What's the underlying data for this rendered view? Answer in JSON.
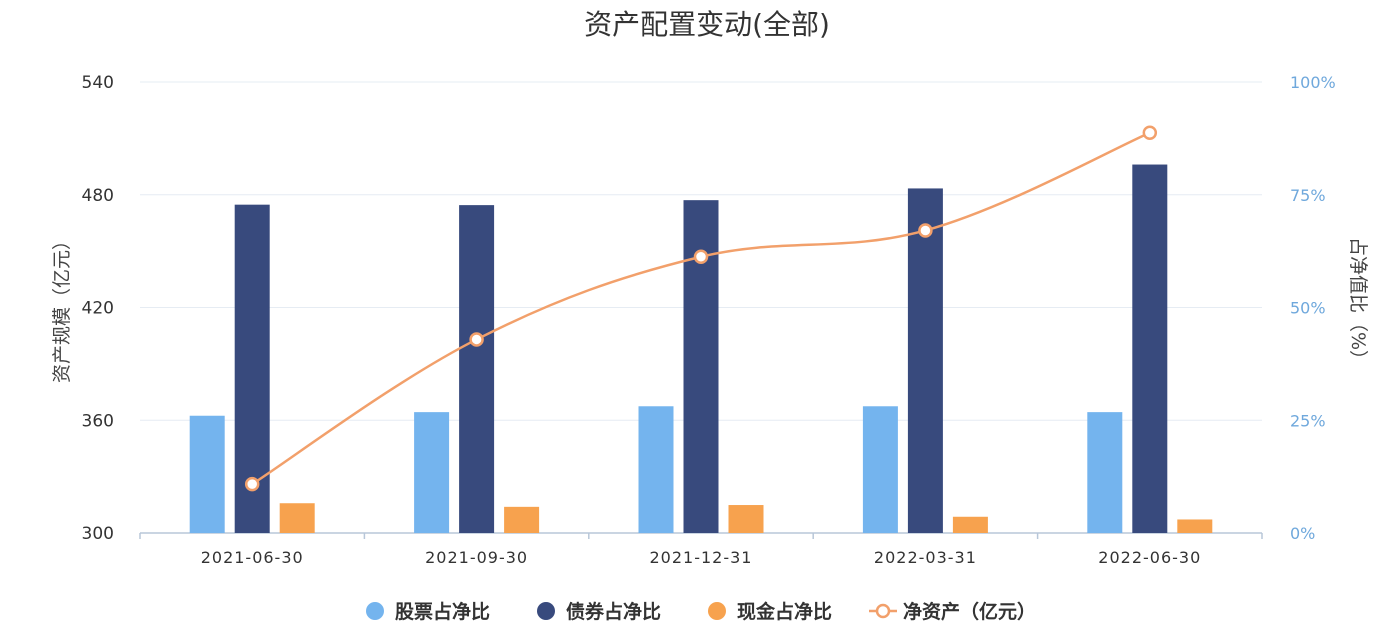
{
  "chart_data": {
    "type": "bar",
    "title": "资产配置变动(全部)",
    "categories": [
      "2021-06-30",
      "2021-09-30",
      "2021-12-31",
      "2022-03-31",
      "2022-06-30"
    ],
    "ylabel_left": "资产规模（亿元）",
    "ylabel_right": "占净值比（%）",
    "left_axis": {
      "min": 300,
      "max": 540,
      "ticks": [
        "300",
        "360",
        "420",
        "480",
        "540"
      ]
    },
    "right_axis": {
      "min": 0,
      "max": 100,
      "ticks": [
        "0%",
        "25%",
        "50%",
        "75%",
        "100%"
      ]
    },
    "grid": true,
    "legend_position": "bottom",
    "series": [
      {
        "name": "股票占净比",
        "kind": "bar",
        "axis": "right",
        "color": "#74b4ee",
        "values": [
          26.0,
          26.8,
          28.1,
          28.1,
          26.8
        ]
      },
      {
        "name": "债券占净比",
        "kind": "bar",
        "axis": "right",
        "color": "#384a7d",
        "values": [
          72.8,
          72.7,
          73.8,
          76.4,
          81.7
        ]
      },
      {
        "name": "现金占净比",
        "kind": "bar",
        "axis": "right",
        "color": "#f7a24e",
        "values": [
          6.6,
          5.8,
          6.2,
          3.6,
          3.0
        ]
      },
      {
        "name": "净资产（亿元）",
        "kind": "line",
        "axis": "left",
        "color": "#f2a06b",
        "values": [
          326,
          403,
          447,
          461,
          513
        ]
      }
    ]
  }
}
